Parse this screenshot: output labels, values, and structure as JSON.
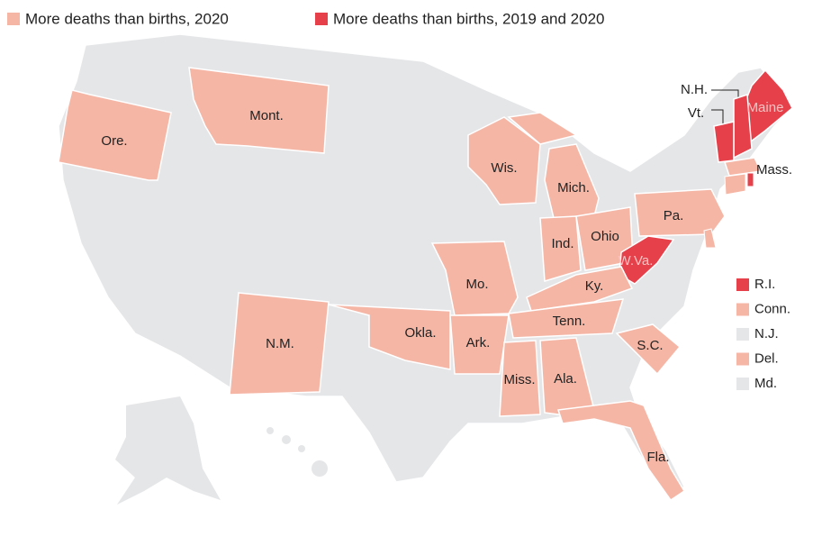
{
  "legend": [
    {
      "label": "More deaths than births, 2020",
      "color": "#f5b6a6"
    },
    {
      "label": "More deaths than births, 2019 and 2020",
      "color": "#e6404a"
    }
  ],
  "no_data_color": "#e5e6e8",
  "states": [
    {
      "label": "Ore.",
      "group": 0
    },
    {
      "label": "Mont.",
      "group": 0
    },
    {
      "label": "Wis.",
      "group": 0
    },
    {
      "label": "Mich.",
      "group": 0
    },
    {
      "label": "Ind.",
      "group": 0
    },
    {
      "label": "Ohio",
      "group": 0
    },
    {
      "label": "Pa.",
      "group": 0
    },
    {
      "label": "W.Va.",
      "group": 1
    },
    {
      "label": "Ky.",
      "group": 0
    },
    {
      "label": "Tenn.",
      "group": 0
    },
    {
      "label": "Mo.",
      "group": 0
    },
    {
      "label": "Okla.",
      "group": 0
    },
    {
      "label": "Ark.",
      "group": 0
    },
    {
      "label": "N.M.",
      "group": 0
    },
    {
      "label": "Miss.",
      "group": 0
    },
    {
      "label": "Ala.",
      "group": 0
    },
    {
      "label": "Fla.",
      "group": 0
    },
    {
      "label": "S.C.",
      "group": 0
    },
    {
      "label": "Maine",
      "group": 1
    },
    {
      "label": "N.H.",
      "group": 1
    },
    {
      "label": "Vt.",
      "group": 1
    },
    {
      "label": "Mass.",
      "group": 0
    }
  ],
  "small_states": [
    {
      "label": "R.I.",
      "group": 1
    },
    {
      "label": "Conn.",
      "group": 0
    },
    {
      "label": "N.J.",
      "group": null
    },
    {
      "label": "Del.",
      "group": 0
    },
    {
      "label": "Md.",
      "group": null
    }
  ]
}
